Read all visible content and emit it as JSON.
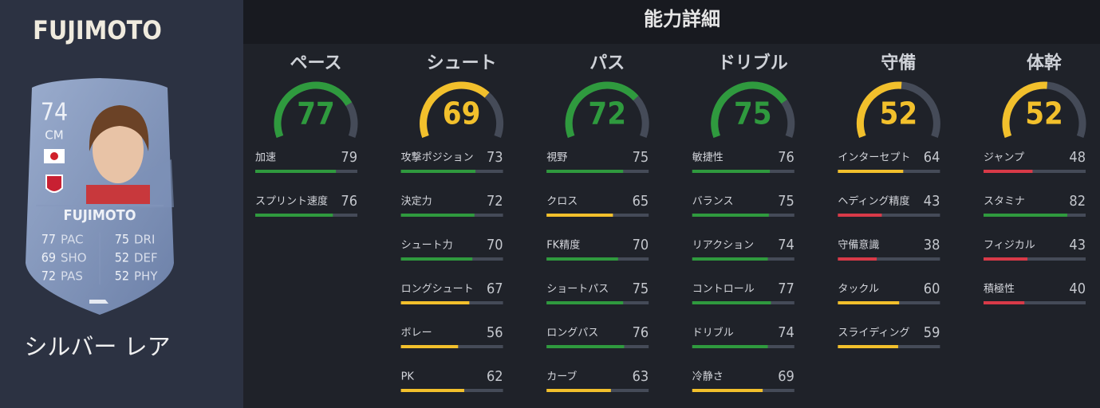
{
  "player": {
    "name": "FUJIMOTO"
  },
  "card": {
    "rating": 74,
    "position": "CM",
    "name": "FUJIMOTO",
    "stats": [
      {
        "value": 77,
        "label": "PAC"
      },
      {
        "value": 75,
        "label": "DRI"
      },
      {
        "value": 69,
        "label": "SHO"
      },
      {
        "value": 52,
        "label": "DEF"
      },
      {
        "value": 72,
        "label": "PAS"
      },
      {
        "value": 52,
        "label": "PHY"
      }
    ]
  },
  "rarity": "シルバー レア",
  "header": "能力詳細",
  "categories": [
    {
      "name": "ペース",
      "value": 77,
      "attributes": [
        {
          "name": "加速",
          "value": 79
        },
        {
          "name": "スプリント速度",
          "value": 76
        }
      ]
    },
    {
      "name": "シュート",
      "value": 69,
      "attributes": [
        {
          "name": "攻撃ポジション",
          "value": 73
        },
        {
          "name": "決定力",
          "value": 72
        },
        {
          "name": "シュート力",
          "value": 70
        },
        {
          "name": "ロングシュート",
          "value": 67
        },
        {
          "name": "ボレー",
          "value": 56
        },
        {
          "name": "PK",
          "value": 62
        }
      ]
    },
    {
      "name": "パス",
      "value": 72,
      "attributes": [
        {
          "name": "視野",
          "value": 75
        },
        {
          "name": "クロス",
          "value": 65
        },
        {
          "name": "FK精度",
          "value": 70
        },
        {
          "name": "ショートパス",
          "value": 75
        },
        {
          "name": "ロングパス",
          "value": 76
        },
        {
          "name": "カーブ",
          "value": 63
        }
      ]
    },
    {
      "name": "ドリブル",
      "value": 75,
      "attributes": [
        {
          "name": "敏捷性",
          "value": 76
        },
        {
          "name": "バランス",
          "value": 75
        },
        {
          "name": "リアクション",
          "value": 74
        },
        {
          "name": "コントロール",
          "value": 77
        },
        {
          "name": "ドリブル",
          "value": 74
        },
        {
          "name": "冷静さ",
          "value": 69
        }
      ]
    },
    {
      "name": "守備",
      "value": 52,
      "attributes": [
        {
          "name": "インターセプト",
          "value": 64
        },
        {
          "name": "ヘディング精度",
          "value": 43
        },
        {
          "name": "守備意識",
          "value": 38
        },
        {
          "name": "タックル",
          "value": 60
        },
        {
          "name": "スライディング",
          "value": 59
        }
      ]
    },
    {
      "name": "体幹",
      "value": 52,
      "attributes": [
        {
          "name": "ジャンプ",
          "value": 48
        },
        {
          "name": "スタミナ",
          "value": 82
        },
        {
          "name": "フィジカル",
          "value": 43
        },
        {
          "name": "積極性",
          "value": 40
        }
      ]
    }
  ]
}
